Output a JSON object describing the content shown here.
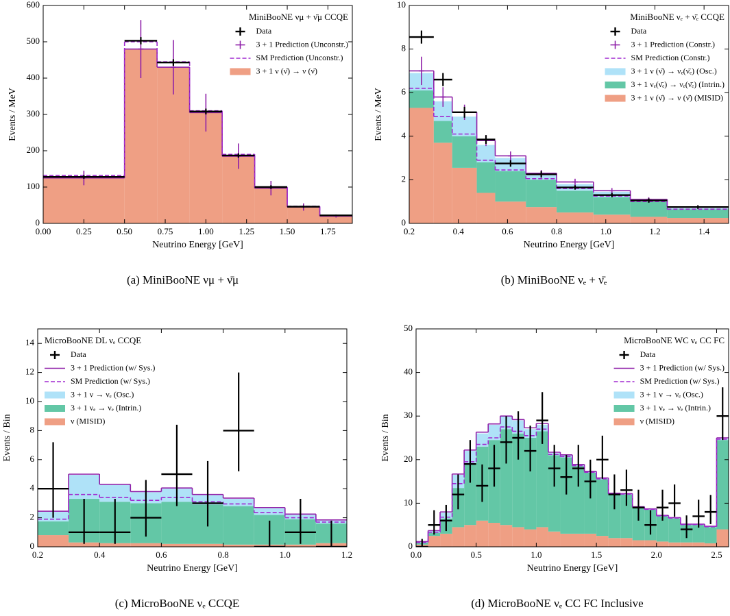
{
  "chart_data": [
    {
      "type": "histogram",
      "caption": "(a) MiniBooNE νμ + ν̄μ",
      "title": "MiniBooNE νμ + ν̄μ CCQE",
      "xlabel": "Neutrino Energy [GeV]",
      "ylabel": "Events / MeV",
      "legend_loc": "upper right",
      "xlim": [
        0,
        1.9
      ],
      "ylim": [
        0,
        600
      ],
      "xticks": [
        {
          "value": 0,
          "label": "0.00"
        },
        0.25,
        {
          "value": 0.5,
          "label": "0.50"
        },
        0.75,
        {
          "value": 1,
          "label": "1.00"
        },
        1.25,
        {
          "value": 1.5,
          "label": "1.50"
        },
        1.75
      ],
      "yticks": [
        0,
        100,
        200,
        300,
        400,
        500,
        600
      ],
      "bins": [
        0,
        0.5,
        0.7,
        0.9,
        1.1,
        1.3,
        1.5,
        1.7,
        1.9
      ],
      "series": [
        {
          "name": "3 + 1 ν (ν̄) → ν (ν̄)",
          "color": "#ef9f84",
          "values": [
            125,
            480,
            430,
            305,
            185,
            97,
            45,
            20
          ]
        }
      ],
      "lines": [
        {
          "name": "3 + 1 Prediction (Unconstr.)",
          "color": "#8e1fa8",
          "style": "errorbar",
          "values": [
            125,
            480,
            430,
            305,
            185,
            97,
            45,
            20
          ],
          "errors": [
            20,
            80,
            75,
            52,
            35,
            20,
            10,
            4
          ]
        },
        {
          "name": "SM Prediction (Unconstr.)",
          "color": "#a02ad0",
          "style": "dashed",
          "values": [
            132,
            500,
            445,
            310,
            190,
            100,
            47,
            22
          ]
        }
      ],
      "data": {
        "name": "Data",
        "color": "#000000",
        "x": [
          0.25,
          0.6,
          0.8,
          1.0,
          1.2,
          1.4,
          1.6,
          1.8
        ],
        "xerr": [
          0.25,
          0.1,
          0.1,
          0.1,
          0.1,
          0.1,
          0.1,
          0.1
        ],
        "values": [
          128,
          503,
          443,
          308,
          187,
          100,
          46,
          22
        ],
        "yerr": [
          5,
          10,
          9,
          8,
          6,
          5,
          3,
          2
        ]
      }
    },
    {
      "type": "histogram",
      "caption": "(b) MiniBooNE νₑ + ν̄ₑ",
      "title": "MiniBooNE νₑ + ν̄ₑ CCQE",
      "xlabel": "Neutrino Energy [GeV]",
      "ylabel": "Events / MeV",
      "legend_loc": "upper right",
      "xlim": [
        0.2,
        1.5
      ],
      "ylim": [
        0,
        10
      ],
      "xticks": [
        0.2,
        0.4,
        0.6,
        0.8,
        {
          "value": 1,
          "label": "1.0"
        },
        1.2,
        1.4
      ],
      "yticks": [
        0,
        2,
        4,
        6,
        8,
        10
      ],
      "bins": [
        0.2,
        0.3,
        0.375,
        0.475,
        0.55,
        0.675,
        0.8,
        0.95,
        1.1,
        1.25,
        1.5
      ],
      "series": [
        {
          "name": "3 + 1 ν (ν̄) → ν (ν̄) (MISID)",
          "color": "#ef9f84",
          "values": [
            5.3,
            3.7,
            2.55,
            1.4,
            1.0,
            0.75,
            0.5,
            0.4,
            0.3,
            0.25
          ]
        },
        {
          "name": "3 + 1 νₑ(ν̄ₑ) → νₑ(ν̄ₑ) (Intrin.)",
          "color": "#63c7a6",
          "values": [
            0.8,
            1.0,
            1.45,
            1.4,
            1.4,
            1.25,
            1.0,
            0.8,
            0.7,
            0.4
          ]
        },
        {
          "name": "3 + 1 ν (ν̄) → νₑ(ν̄ₑ) (Osc.)",
          "color": "#afe2f8",
          "values": [
            0.8,
            0.9,
            0.9,
            0.8,
            0.6,
            0.2,
            0.3,
            0.25,
            0.05,
            0.05
          ]
        }
      ],
      "lines": [
        {
          "name": "3 + 1 Prediction (Constr.)",
          "color": "#8e1fa8",
          "style": "errorbar",
          "values": [
            7.0,
            5.8,
            5.1,
            3.8,
            3.1,
            2.3,
            1.9,
            1.5,
            1.1,
            0.75
          ],
          "errors": [
            0.65,
            0.45,
            0.35,
            0.25,
            0.2,
            0.15,
            0.15,
            0.12,
            0.1,
            0.08
          ]
        },
        {
          "name": "SM Prediction (Constr.)",
          "color": "#a02ad0",
          "style": "dashed",
          "values": [
            6.2,
            4.9,
            4.1,
            2.9,
            2.45,
            2.05,
            1.6,
            1.25,
            1.0,
            0.65
          ]
        }
      ],
      "data": {
        "name": "Data",
        "color": "#000000",
        "x": [
          0.25,
          0.3375,
          0.425,
          0.5125,
          0.6125,
          0.7375,
          0.875,
          1.025,
          1.175,
          1.375
        ],
        "xerr": [
          0.05,
          0.0375,
          0.05,
          0.0375,
          0.0625,
          0.0625,
          0.075,
          0.075,
          0.075,
          0.125
        ],
        "values": [
          8.55,
          6.6,
          5.1,
          3.85,
          2.75,
          2.25,
          1.65,
          1.3,
          1.05,
          0.75
        ],
        "yerr": [
          0.3,
          0.3,
          0.25,
          0.2,
          0.15,
          0.15,
          0.1,
          0.1,
          0.1,
          0.08
        ]
      }
    },
    {
      "type": "histogram",
      "caption": "(c) MicroBooNE νₑ CCQE",
      "title": "MicroBooNE DL νₑ CCQE",
      "xlabel": "Neutrino Energy [GeV]",
      "ylabel": "Events / Bin",
      "legend_loc": "upper left",
      "xlim": [
        0.2,
        1.2
      ],
      "ylim": [
        0,
        15
      ],
      "xticks": [
        0.2,
        0.4,
        0.6,
        0.8,
        {
          "value": 1,
          "label": "1.0"
        },
        1.2
      ],
      "yticks": [
        0,
        2,
        4,
        6,
        8,
        10,
        12,
        14
      ],
      "bins": [
        0.2,
        0.3,
        0.4,
        0.5,
        0.6,
        0.7,
        0.8,
        0.9,
        1.0,
        1.1,
        1.2
      ],
      "series": [
        {
          "name": "ν (MISID)",
          "color": "#ef9f84",
          "values": [
            0.8,
            0.3,
            0.25,
            0.25,
            0.2,
            0.2,
            0.15,
            0.15,
            0.15,
            0.25
          ]
        },
        {
          "name": "3 + 1 νₑ → νₑ (Intrin.)",
          "color": "#63c7a6",
          "values": [
            0.95,
            3.0,
            2.85,
            2.75,
            2.9,
            2.7,
            2.65,
            2.05,
            1.75,
            1.35
          ]
        },
        {
          "name": "3 + 1 ν → νₑ (Osc.)",
          "color": "#afe2f8",
          "values": [
            0.65,
            1.65,
            1.15,
            0.75,
            0.9,
            0.65,
            0.5,
            0.45,
            0.3,
            0.2
          ]
        }
      ],
      "lines": [
        {
          "name": "3 + 1 Prediction (w/ Sys.)",
          "color": "#8e1fa8",
          "style": "solid",
          "values": [
            2.45,
            5.0,
            4.3,
            3.8,
            4.05,
            3.6,
            3.35,
            2.7,
            2.25,
            1.85
          ]
        },
        {
          "name": "SM Prediction (w/ Sys.)",
          "color": "#a02ad0",
          "style": "dashed",
          "values": [
            1.9,
            3.6,
            3.4,
            3.2,
            3.4,
            3.1,
            2.95,
            2.35,
            2.0,
            1.7
          ]
        }
      ],
      "data": {
        "name": "Data",
        "color": "#000000",
        "x": [
          0.25,
          0.35,
          0.45,
          0.55,
          0.65,
          0.75,
          0.85,
          0.95,
          1.05,
          1.15
        ],
        "xerr": [
          0.05,
          0.05,
          0.05,
          0.05,
          0.05,
          0.05,
          0.05,
          0.05,
          0.05,
          0.05
        ],
        "values": [
          4,
          1,
          1,
          2,
          5,
          3,
          8,
          0,
          1,
          0
        ],
        "yerr": [
          [
            2.0,
            3.2
          ],
          [
            0.8,
            2.3
          ],
          [
            0.8,
            2.3
          ],
          [
            1.3,
            2.6
          ],
          [
            2.2,
            3.4
          ],
          [
            1.6,
            2.9
          ],
          [
            2.8,
            4.0
          ],
          [
            0,
            1.8
          ],
          [
            0.8,
            2.3
          ],
          [
            0,
            1.8
          ]
        ]
      }
    },
    {
      "type": "histogram",
      "caption": "(d) MicroBooNE νₑ CC FC Inclusive",
      "title": "MicroBooNE WC νₑ CC FC",
      "xlabel": "Neutrino Energy [GeV]",
      "ylabel": "Events / Bin",
      "legend_loc": "upper right",
      "xlim": [
        0,
        2.6
      ],
      "ylim": [
        0,
        50
      ],
      "xticks": [
        {
          "value": 0,
          "label": "0.0"
        },
        0.5,
        {
          "value": 1,
          "label": "1.0"
        },
        1.5,
        {
          "value": 2,
          "label": "2.0"
        },
        2.5
      ],
      "yticks": [
        0,
        10,
        20,
        30,
        40,
        50
      ],
      "bins": [
        0,
        0.1,
        0.2,
        0.3,
        0.4,
        0.5,
        0.6,
        0.7,
        0.8,
        0.9,
        1.0,
        1.1,
        1.2,
        1.3,
        1.4,
        1.5,
        1.6,
        1.7,
        1.8,
        1.9,
        2.0,
        2.1,
        2.2,
        2.3,
        2.4,
        2.5,
        2.6
      ],
      "series": [
        {
          "name": "ν (MISID)",
          "color": "#ef9f84",
          "values": [
            0.5,
            2.5,
            3.0,
            4.5,
            5.0,
            6.0,
            5.5,
            5.0,
            4.5,
            4.0,
            4.5,
            3.5,
            3.0,
            3.0,
            3.0,
            2.5,
            2.0,
            2.0,
            1.5,
            1.5,
            1.2,
            1.0,
            1.0,
            1.0,
            0.8,
            4.0
          ]
        },
        {
          "name": "3 + 1 νₑ → νₑ (Intrin.)",
          "color": "#63c7a6",
          "values": [
            0.5,
            0.7,
            3.5,
            9.0,
            14.0,
            17.0,
            19.0,
            22.0,
            21.5,
            21.0,
            22.0,
            17.5,
            17.5,
            15.5,
            14.0,
            13.0,
            10.0,
            10.0,
            7.5,
            7.0,
            5.8,
            5.5,
            4.0,
            4.0,
            3.7,
            20.5
          ]
        },
        {
          "name": "3 + 1 ν → νₑ (Osc.)",
          "color": "#afe2f8",
          "values": [
            0.1,
            0.4,
            1.3,
            3.0,
            3.0,
            3.0,
            3.5,
            3.0,
            3.0,
            2.0,
            1.5,
            0.5,
            0.5,
            0.3,
            0.2,
            0.2,
            0.2,
            0.1,
            0.1,
            0.1,
            0.1,
            0.1,
            0.1,
            0.1,
            0.1,
            0.3
          ]
        }
      ],
      "lines": [
        {
          "name": "3 + 1 Prediction (w/ Sys.)",
          "color": "#8e1fa8",
          "style": "solid",
          "values": [
            1.2,
            3.7,
            8.0,
            16.7,
            22.2,
            26.3,
            28.2,
            30.0,
            29.2,
            27.3,
            28.3,
            21.7,
            21.1,
            18.9,
            17.3,
            15.8,
            12.3,
            12.2,
            9.2,
            8.7,
            7.2,
            6.7,
            5.2,
            5.2,
            4.7,
            25.0
          ]
        },
        {
          "name": "SM Prediction (w/ Sys.)",
          "color": "#a02ad0",
          "style": "dashed",
          "values": [
            1.0,
            3.3,
            6.8,
            14.5,
            19.5,
            23.5,
            25.0,
            27.5,
            26.5,
            25.5,
            27.0,
            21.2,
            20.7,
            18.6,
            17.1,
            15.6,
            12.1,
            12.1,
            9.1,
            8.6,
            7.1,
            6.6,
            5.1,
            5.1,
            4.6,
            24.7
          ]
        }
      ],
      "data": {
        "name": "Data",
        "color": "#000000",
        "x": [
          0.05,
          0.15,
          0.25,
          0.35,
          0.45,
          0.55,
          0.65,
          0.75,
          0.85,
          0.95,
          1.05,
          1.15,
          1.25,
          1.35,
          1.45,
          1.55,
          1.65,
          1.75,
          1.85,
          1.95,
          2.05,
          2.15,
          2.25,
          2.35,
          2.45,
          2.55
        ],
        "xerr": [
          0.05,
          0.05,
          0.05,
          0.05,
          0.05,
          0.05,
          0.05,
          0.05,
          0.05,
          0.05,
          0.05,
          0.05,
          0.05,
          0.05,
          0.05,
          0.05,
          0.05,
          0.05,
          0.05,
          0.05,
          0.05,
          0.05,
          0.05,
          0.05,
          0.05,
          0.05
        ],
        "values": [
          0,
          5,
          6,
          12,
          19,
          14,
          18,
          24,
          25,
          22,
          29,
          18,
          16,
          18,
          15,
          20,
          12,
          13,
          9,
          5,
          9,
          10,
          4,
          7,
          8,
          30
        ],
        "yerr": [
          [
            0,
            1.8
          ],
          [
            2.2,
            3.4
          ],
          [
            2.4,
            3.6
          ],
          [
            3.4,
            4.6
          ],
          [
            4.3,
            5.5
          ],
          [
            3.7,
            4.9
          ],
          [
            4.2,
            5.4
          ],
          [
            4.9,
            6.0
          ],
          [
            5.0,
            6.1
          ],
          [
            4.7,
            5.8
          ],
          [
            5.4,
            6.5
          ],
          [
            4.2,
            5.4
          ],
          [
            4.0,
            5.1
          ],
          [
            4.2,
            5.4
          ],
          [
            3.9,
            5.0
          ],
          [
            4.4,
            5.5
          ],
          [
            3.4,
            4.6
          ],
          [
            3.6,
            4.7
          ],
          [
            3.0,
            4.1
          ],
          [
            2.2,
            3.4
          ],
          [
            3.0,
            4.1
          ],
          [
            3.1,
            4.3
          ],
          [
            2.0,
            3.2
          ],
          [
            2.6,
            3.8
          ],
          [
            2.8,
            3.9
          ],
          [
            5.5,
            6.6
          ]
        ]
      }
    }
  ]
}
